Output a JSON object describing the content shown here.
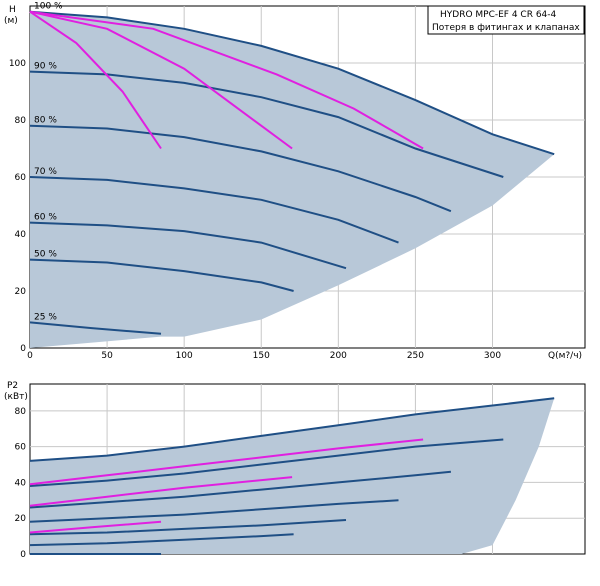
{
  "chart_data": [
    {
      "type": "line",
      "title": "HYDRO MPC-EF 4 CR 64-4",
      "subtitle": "Потеря в фитингах и клапанах",
      "ylabel": "H",
      "yunit": "(м)",
      "xlabel": "Q(м?/ч)",
      "xlim": [
        0,
        360
      ],
      "ylim": [
        0,
        120
      ],
      "xticks": [
        0,
        50,
        100,
        150,
        200,
        250,
        300
      ],
      "yticks": [
        0,
        20,
        40,
        60,
        80,
        100
      ],
      "grid": true,
      "envelope": {
        "upper": [
          [
            0,
            118
          ],
          [
            50,
            116
          ],
          [
            100,
            112
          ],
          [
            150,
            106
          ],
          [
            200,
            98
          ],
          [
            250,
            87
          ],
          [
            300,
            75
          ],
          [
            340,
            68
          ]
        ],
        "lower": [
          [
            340,
            68
          ],
          [
            300,
            50
          ],
          [
            250,
            35
          ],
          [
            200,
            22
          ],
          [
            150,
            10
          ],
          [
            100,
            4
          ],
          [
            85,
            4
          ]
        ]
      },
      "series": [
        {
          "name": "100 %",
          "x": [
            0,
            50,
            100,
            150,
            200,
            250,
            300,
            340
          ],
          "y": [
            118,
            116,
            112,
            106,
            98,
            87,
            75,
            68
          ]
        },
        {
          "name": "90 %",
          "x": [
            0,
            50,
            100,
            150,
            200,
            250,
            307
          ],
          "y": [
            97,
            96,
            93,
            88,
            81,
            70,
            60
          ]
        },
        {
          "name": "80 %",
          "x": [
            0,
            50,
            100,
            150,
            200,
            250,
            273
          ],
          "y": [
            78,
            77,
            74,
            69,
            62,
            53,
            48
          ]
        },
        {
          "name": "70 %",
          "x": [
            0,
            50,
            100,
            150,
            200,
            239
          ],
          "y": [
            60,
            59,
            56,
            52,
            45,
            37
          ]
        },
        {
          "name": "60 %",
          "x": [
            0,
            50,
            100,
            150,
            205
          ],
          "y": [
            44,
            43,
            41,
            37,
            28
          ]
        },
        {
          "name": "50 %",
          "x": [
            0,
            50,
            100,
            150,
            171
          ],
          "y": [
            31,
            30,
            27,
            23,
            20
          ]
        },
        {
          "name": "25 %",
          "x": [
            0,
            40,
            85
          ],
          "y": [
            9,
            7,
            5
          ]
        }
      ],
      "system_curves": [
        {
          "x": [
            0,
            30,
            60,
            85
          ],
          "y": [
            118,
            107,
            90,
            70
          ]
        },
        {
          "x": [
            0,
            50,
            100,
            130,
            170
          ],
          "y": [
            118,
            112,
            98,
            86,
            70
          ]
        },
        {
          "x": [
            0,
            80,
            160,
            210,
            255
          ],
          "y": [
            118,
            112,
            96,
            84,
            70
          ]
        }
      ],
      "series_labels": [
        "100 %",
        "90 %",
        "80 %",
        "70 %",
        "60 %",
        "50 %",
        "25 %"
      ]
    },
    {
      "type": "line",
      "ylabel": "P2",
      "yunit": "(кВт)",
      "xlim": [
        0,
        360
      ],
      "ylim": [
        0,
        95
      ],
      "yticks": [
        0,
        20,
        40,
        60,
        80
      ],
      "xticks": [
        0,
        50,
        100,
        150,
        200,
        250,
        300
      ],
      "grid": true,
      "envelope": {
        "upper": [
          [
            0,
            52
          ],
          [
            50,
            55
          ],
          [
            100,
            60
          ],
          [
            150,
            66
          ],
          [
            200,
            72
          ],
          [
            250,
            78
          ],
          [
            300,
            83
          ],
          [
            340,
            87
          ]
        ],
        "lower": [
          [
            340,
            87
          ],
          [
            330,
            60
          ],
          [
            315,
            30
          ],
          [
            300,
            5
          ],
          [
            280,
            -5
          ],
          [
            0,
            -5
          ]
        ]
      },
      "series": [
        {
          "name": "100 %",
          "x": [
            0,
            50,
            100,
            150,
            200,
            250,
            300,
            340
          ],
          "y": [
            52,
            55,
            60,
            66,
            72,
            78,
            83,
            87
          ]
        },
        {
          "name": "90 %",
          "x": [
            0,
            50,
            100,
            150,
            200,
            250,
            307
          ],
          "y": [
            38,
            41,
            45,
            50,
            55,
            60,
            64
          ]
        },
        {
          "name": "80 %",
          "x": [
            0,
            50,
            100,
            150,
            200,
            250,
            273
          ],
          "y": [
            26,
            29,
            32,
            36,
            40,
            44,
            46
          ]
        },
        {
          "name": "70 %",
          "x": [
            0,
            50,
            100,
            150,
            200,
            239
          ],
          "y": [
            18,
            20,
            22,
            25,
            28,
            30
          ]
        },
        {
          "name": "60 %",
          "x": [
            0,
            50,
            100,
            150,
            205
          ],
          "y": [
            11,
            12,
            14,
            16,
            19
          ]
        },
        {
          "name": "50 %",
          "x": [
            0,
            50,
            100,
            150,
            171
          ],
          "y": [
            5,
            6,
            8,
            10,
            11
          ]
        },
        {
          "name": "25 %",
          "x": [
            0,
            40,
            85
          ],
          "y": [
            -3,
            -2,
            -1
          ]
        }
      ],
      "system_curves": [
        {
          "x": [
            0,
            50,
            100,
            150,
            200,
            255
          ],
          "y": [
            39,
            44,
            49,
            54,
            59,
            64
          ]
        },
        {
          "x": [
            0,
            50,
            100,
            170
          ],
          "y": [
            27,
            32,
            37,
            43
          ]
        },
        {
          "x": [
            0,
            40,
            85
          ],
          "y": [
            12,
            15,
            18
          ]
        }
      ]
    }
  ]
}
